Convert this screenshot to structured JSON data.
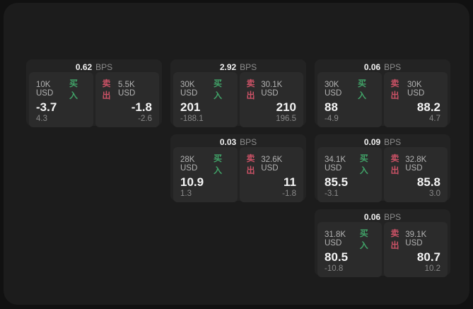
{
  "labels": {
    "bps_unit": "BPS",
    "buy": "买入",
    "sell": "卖出"
  },
  "colors": {
    "page_bg": "#111111",
    "panel_bg": "#1c1c1c",
    "card_bg": "#232323",
    "tile_bg": "#2b2b2b",
    "primary_text": "#f5f5f5",
    "muted_text": "#8a8a8a",
    "size_label_text": "#b3b3b3",
    "buy_green": "#41a368",
    "sell_red": "#cc5266"
  },
  "cards": [
    {
      "bps": "0.62",
      "buy": {
        "size": "10K USD",
        "value": "-3.7",
        "delta": "4.3"
      },
      "sell": {
        "size": "5.5K USD",
        "value": "-1.8",
        "delta": "-2.6"
      }
    },
    {
      "bps": "2.92",
      "buy": {
        "size": "30K USD",
        "value": "201",
        "delta": "-188.1"
      },
      "sell": {
        "size": "30.1K USD",
        "value": "210",
        "delta": "196.5"
      }
    },
    {
      "bps": "0.06",
      "buy": {
        "size": "30K USD",
        "value": "88",
        "delta": "-4.9"
      },
      "sell": {
        "size": "30K USD",
        "value": "88.2",
        "delta": "4.7"
      }
    },
    {
      "bps": "0.03",
      "buy": {
        "size": "28K USD",
        "value": "10.9",
        "delta": "1.3"
      },
      "sell": {
        "size": "32.6K USD",
        "value": "11",
        "delta": "-1.8"
      }
    },
    {
      "bps": "0.09",
      "buy": {
        "size": "34.1K USD",
        "value": "85.5",
        "delta": "-3.1"
      },
      "sell": {
        "size": "32.8K USD",
        "value": "85.8",
        "delta": "3.0"
      }
    },
    {
      "bps": "0.06",
      "buy": {
        "size": "31.8K USD",
        "value": "80.5",
        "delta": "-10.8"
      },
      "sell": {
        "size": "39.1K USD",
        "value": "80.7",
        "delta": "10.2"
      }
    }
  ]
}
